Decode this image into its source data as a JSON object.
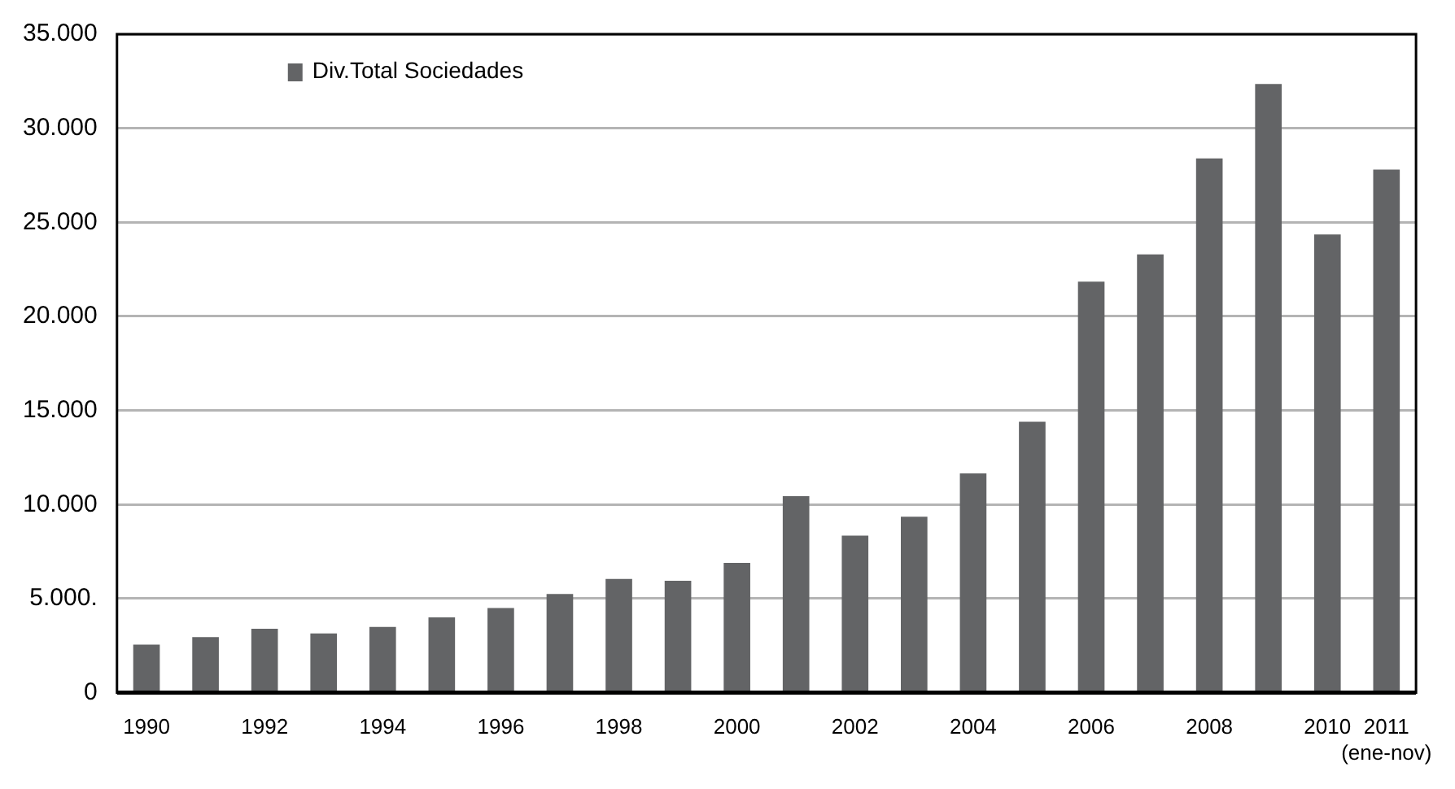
{
  "chart_data": {
    "type": "bar",
    "categories": [
      "1990",
      null,
      "1992",
      null,
      "1994",
      null,
      "1996",
      null,
      "1998",
      null,
      "2000",
      null,
      "2002",
      null,
      "2004",
      null,
      "2006",
      null,
      "2008",
      null,
      "2010",
      "2011\n(ene-nov)"
    ],
    "series": [
      {
        "name": "Div.Total Sociedades",
        "color": "#636466",
        "values": [
          2550,
          2950,
          3400,
          3150,
          3500,
          4000,
          4500,
          5250,
          6050,
          5950,
          6900,
          10450,
          8350,
          9350,
          11650,
          14400,
          21850,
          23300,
          28400,
          32350,
          24350,
          27800
        ]
      }
    ],
    "ylim": [
      0,
      35000
    ],
    "yticks": [
      0,
      {
        "value": 5000,
        "label": "5.000."
      },
      {
        "value": 10000,
        "label": "10.000"
      },
      {
        "value": 15000,
        "label": "15.000"
      },
      {
        "value": 20000,
        "label": "20.000"
      },
      {
        "value": 25000,
        "label": "25.000"
      },
      {
        "value": 30000,
        "label": "30.000"
      },
      {
        "value": 35000,
        "label": "35.000"
      }
    ],
    "grid": "y",
    "legend": "top left"
  }
}
